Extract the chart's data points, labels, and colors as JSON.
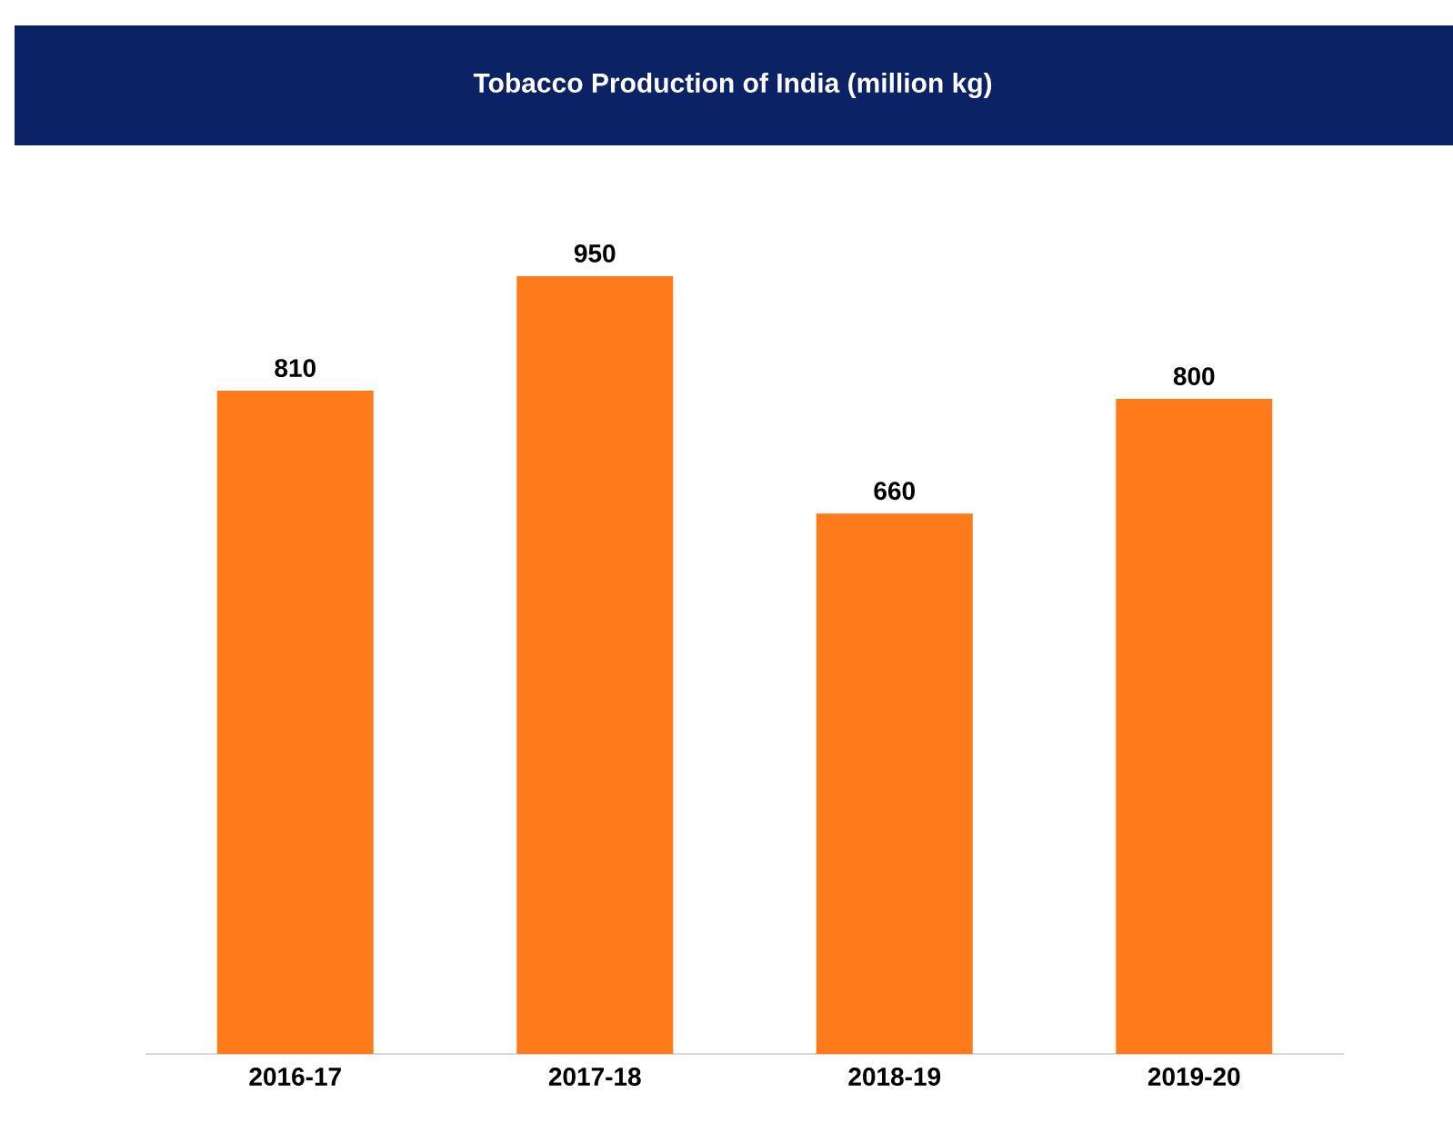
{
  "chart_data": {
    "type": "bar",
    "title": "Tobacco Production of India (million kg)",
    "categories": [
      "2016-17",
      "2017-18",
      "2018-19",
      "2019-20"
    ],
    "values": [
      810,
      950,
      660,
      800
    ],
    "color": "#ff7a1a",
    "data_labels": true
  }
}
